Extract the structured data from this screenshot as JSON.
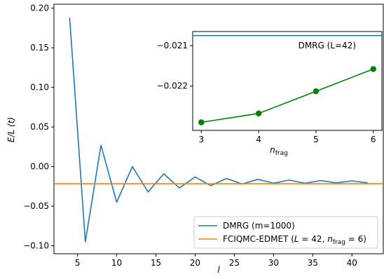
{
  "chart_data": [
    {
      "type": "line",
      "xlabel": "l",
      "ylabel": "E/L (t)",
      "xlim": [
        2,
        44
      ],
      "ylim": [
        -0.11,
        0.205
      ],
      "x_ticks": [
        "5",
        "10",
        "15",
        "20",
        "25",
        "30",
        "35",
        "40"
      ],
      "x_tick_values": [
        5,
        10,
        15,
        20,
        25,
        30,
        35,
        40
      ],
      "y_ticks": [
        "0.20",
        "0.15",
        "0.10",
        "0.05",
        "0.00",
        "−0.05",
        "−0.10"
      ],
      "y_tick_values": [
        0.2,
        0.15,
        0.1,
        0.05,
        0.0,
        -0.05,
        -0.1
      ],
      "legend_position": "lower-right",
      "series": [
        {
          "name": "DMRG (m=1000)",
          "color": "#1f77b4",
          "x": [
            4,
            6,
            8,
            10,
            12,
            14,
            16,
            18,
            20,
            22,
            24,
            26,
            28,
            30,
            32,
            34,
            36,
            38,
            40,
            42
          ],
          "y": [
            0.188,
            -0.095,
            0.027,
            -0.045,
            0.0,
            -0.032,
            -0.009,
            -0.027,
            -0.013,
            -0.024,
            -0.015,
            -0.022,
            -0.016,
            -0.021,
            -0.017,
            -0.021,
            -0.0175,
            -0.0205,
            -0.018,
            -0.0205
          ]
        },
        {
          "name": "FCIQMC-EDMET (L = 42, n_frag = 6)",
          "color": "#ff7f0e",
          "type": "hline",
          "y": -0.0216
        }
      ]
    },
    {
      "type": "line",
      "xlabel": "n_frag",
      "xlim": [
        2.85,
        6.15
      ],
      "ylim": [
        -0.0231,
        -0.02065
      ],
      "x_ticks": [
        "3",
        "4",
        "5",
        "6"
      ],
      "x_tick_values": [
        3,
        4,
        5,
        6
      ],
      "y_ticks": [
        "−0.021",
        "−0.022"
      ],
      "y_tick_values": [
        -0.021,
        -0.022
      ],
      "annotation": "DMRG (L=42)",
      "series": [
        {
          "name": "DMRG (L=42)",
          "color": "#1f77b4",
          "type": "hline",
          "y": -0.02075
        },
        {
          "color": "#008000",
          "x": [
            3,
            4,
            5,
            6
          ],
          "y": [
            -0.0229,
            -0.02268,
            -0.02213,
            -0.02158
          ]
        }
      ]
    }
  ]
}
